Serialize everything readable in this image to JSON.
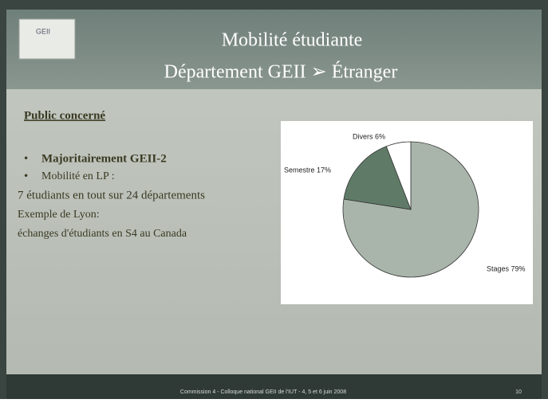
{
  "slide": {
    "title": [
      "Mobilité étudiante",
      "Département GEII ➢ Étranger"
    ],
    "section": "Public concerné",
    "bullets": [
      "Majoritairement GEII-2",
      "Mobilité en LP :"
    ],
    "lines": [
      "7 étudiants en tout sur 24 départements",
      "Exemple de Lyon:",
      "échanges d'étudiants en S4 au Canada"
    ],
    "footer": "Commission 4 - Colloque national GEII de l'IUT - 4, 5 et 6 juin 2008",
    "page": "10"
  },
  "chart_data": {
    "type": "pie",
    "values": [
      79,
      17,
      6
    ],
    "value_labels": [
      "Stages 79%",
      "Semestre 17%",
      "Divers 6%"
    ],
    "colors": [
      "#a9b5ab",
      "#5f7b68",
      "#ffffff"
    ]
  }
}
